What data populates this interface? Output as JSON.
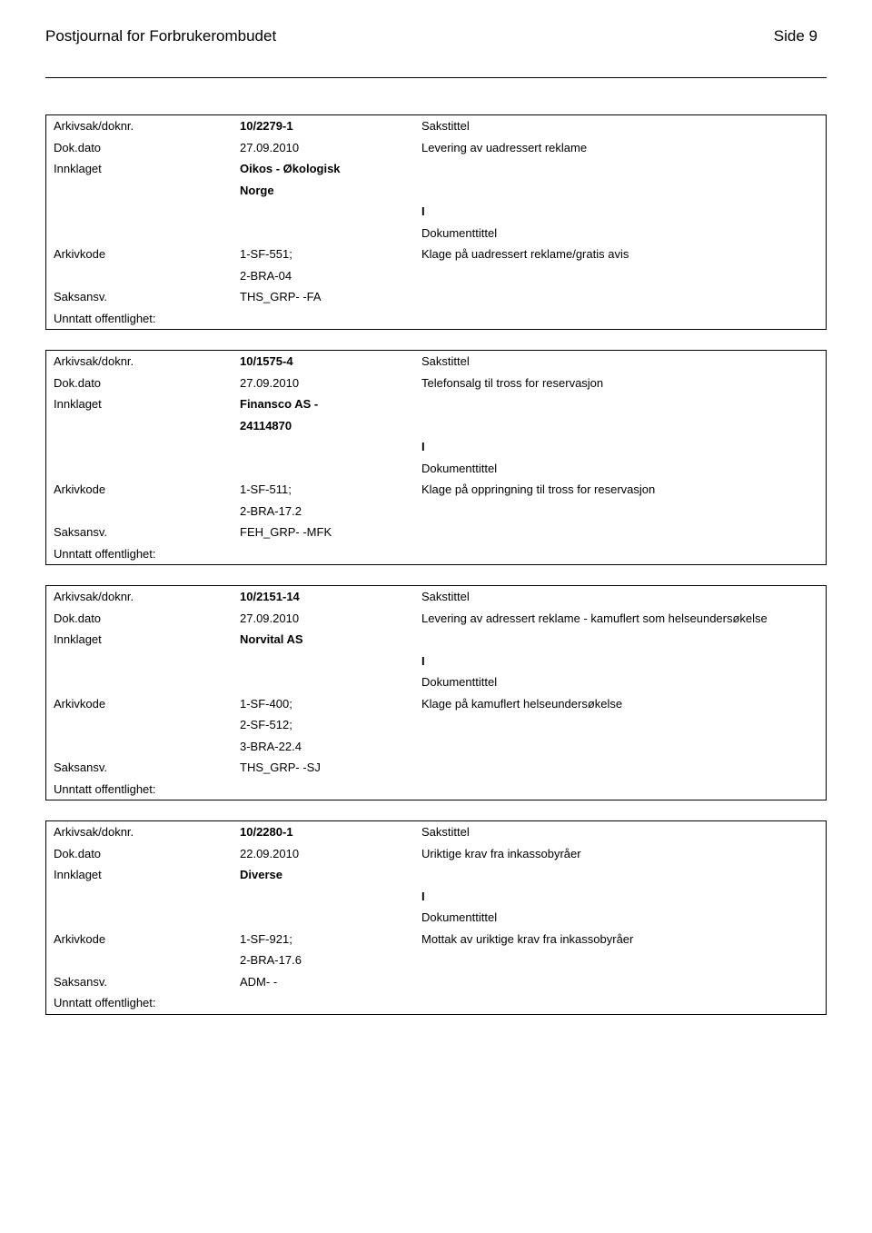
{
  "header": {
    "title": "Postjournal for Forbrukerombudet",
    "page": "Side 9"
  },
  "labels": {
    "arkivsak": "Arkivsak/doknr.",
    "dokdato": "Dok.dato",
    "innklaget": "Innklaget",
    "arkivkode": "Arkivkode",
    "saksansv": "Saksansv.",
    "unntatt": "Unntatt offentlighet:",
    "sakstittel": "Sakstittel",
    "dokumenttittel": "Dokumenttittel",
    "ioflag": "I"
  },
  "records": [
    {
      "arkivsak": "10/2279-1",
      "dokdato": "27.09.2010",
      "saks_desc": "Levering av uadressert reklame",
      "innklaget_lines": [
        "Oikos - Økologisk",
        "Norge"
      ],
      "arkivkode_lines": [
        "1-SF-551;",
        "2-BRA-04"
      ],
      "dok_desc": "Klage på uadressert reklame/gratis avis",
      "saksansv": "THS_GRP- -FA"
    },
    {
      "arkivsak": "10/1575-4",
      "dokdato": "27.09.2010",
      "saks_desc": "Telefonsalg til tross for reservasjon",
      "innklaget_lines": [
        "Finansco AS  -",
        "24114870"
      ],
      "arkivkode_lines": [
        "1-SF-511;",
        "2-BRA-17.2"
      ],
      "dok_desc": "Klage på oppringning til tross for reservasjon",
      "saksansv": "FEH_GRP- -MFK"
    },
    {
      "arkivsak": "10/2151-14",
      "dokdato": "27.09.2010",
      "saks_desc": "Levering av adressert reklame - kamuflert som helseundersøkelse",
      "innklaget_lines": [
        "Norvital AS"
      ],
      "arkivkode_lines": [
        "1-SF-400;",
        "2-SF-512;",
        "3-BRA-22.4"
      ],
      "dok_desc": "Klage på kamuflert helseundersøkelse",
      "saksansv": "THS_GRP- -SJ"
    },
    {
      "arkivsak": "10/2280-1",
      "dokdato": "22.09.2010",
      "saks_desc": "Uriktige krav fra inkassobyråer",
      "innklaget_lines": [
        "Diverse"
      ],
      "arkivkode_lines": [
        "1-SF-921;",
        "2-BRA-17.6"
      ],
      "dok_desc": "Mottak av uriktige krav fra inkassobyråer",
      "saksansv": "ADM- -"
    }
  ]
}
